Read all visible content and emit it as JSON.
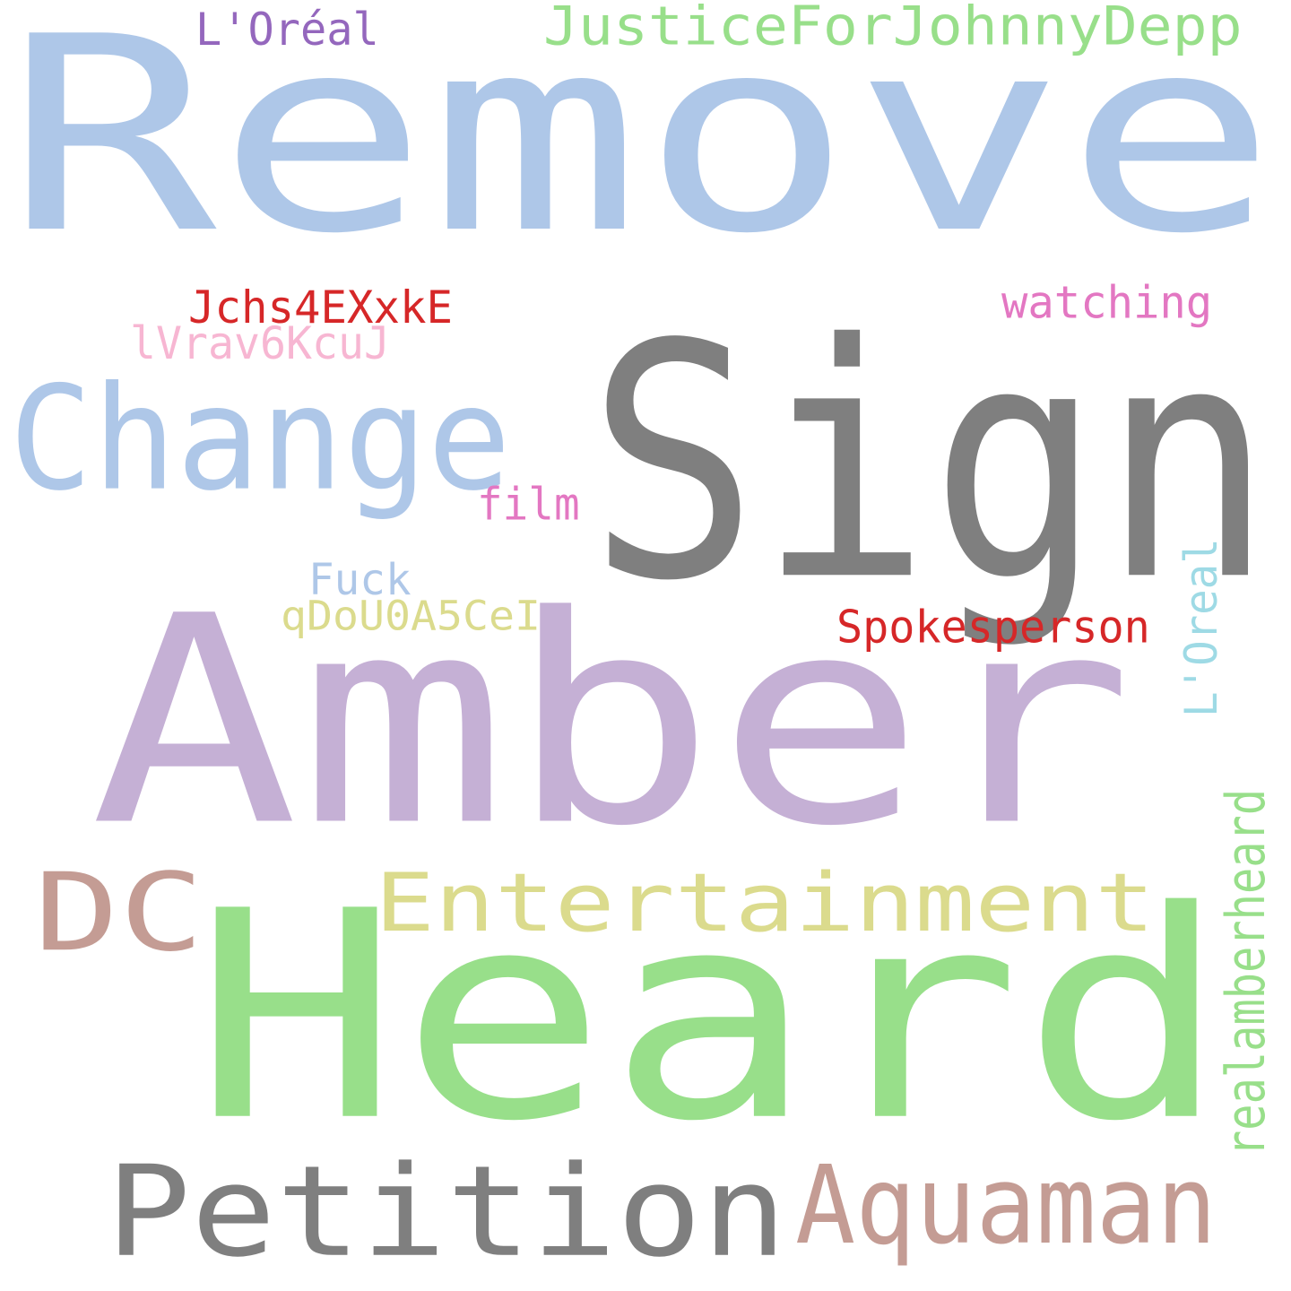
{
  "words": [
    {
      "text": "Remove",
      "color": "#aec7e8",
      "size": 370
    },
    {
      "text": "Sign",
      "color": "#7f7f7f",
      "size": 400
    },
    {
      "text": "Amber",
      "color": "#c5b0d5",
      "size": 440
    },
    {
      "text": "Heard",
      "color": "#98df8a",
      "size": 420
    },
    {
      "text": "Change",
      "color": "#aec7e8",
      "size": 170
    },
    {
      "text": "Petition",
      "color": "#7f7f7f",
      "size": 170
    },
    {
      "text": "Aquaman",
      "color": "#c49c94",
      "size": 150
    },
    {
      "text": "DC",
      "color": "#c49c94",
      "size": 160
    },
    {
      "text": "Entertainment",
      "color": "#dbdb8d",
      "size": 120
    },
    {
      "text": "JusticeForJohnnyDepp",
      "color": "#98df8a",
      "size": 64
    },
    {
      "text": "L'Oréal",
      "color": "#9467bd",
      "size": 50
    },
    {
      "text": "Jchs4EXxkE",
      "color": "#d62728",
      "size": 50
    },
    {
      "text": "lVrav6KcuJ",
      "color": "#f7b6d2",
      "size": 50
    },
    {
      "text": "watching",
      "color": "#e377c2",
      "size": 48
    },
    {
      "text": "film",
      "color": "#e377c2",
      "size": 48
    },
    {
      "text": "Fuck",
      "color": "#aec7e8",
      "size": 48
    },
    {
      "text": "qDoU0A5CeI",
      "color": "#dbdb8d",
      "size": 48
    },
    {
      "text": "Spokesperson",
      "color": "#d62728",
      "size": 48
    },
    {
      "text": "L'Oreal",
      "color": "#9edae5",
      "size": 50
    },
    {
      "text": "realamberheard",
      "color": "#98df8a",
      "size": 54
    }
  ]
}
